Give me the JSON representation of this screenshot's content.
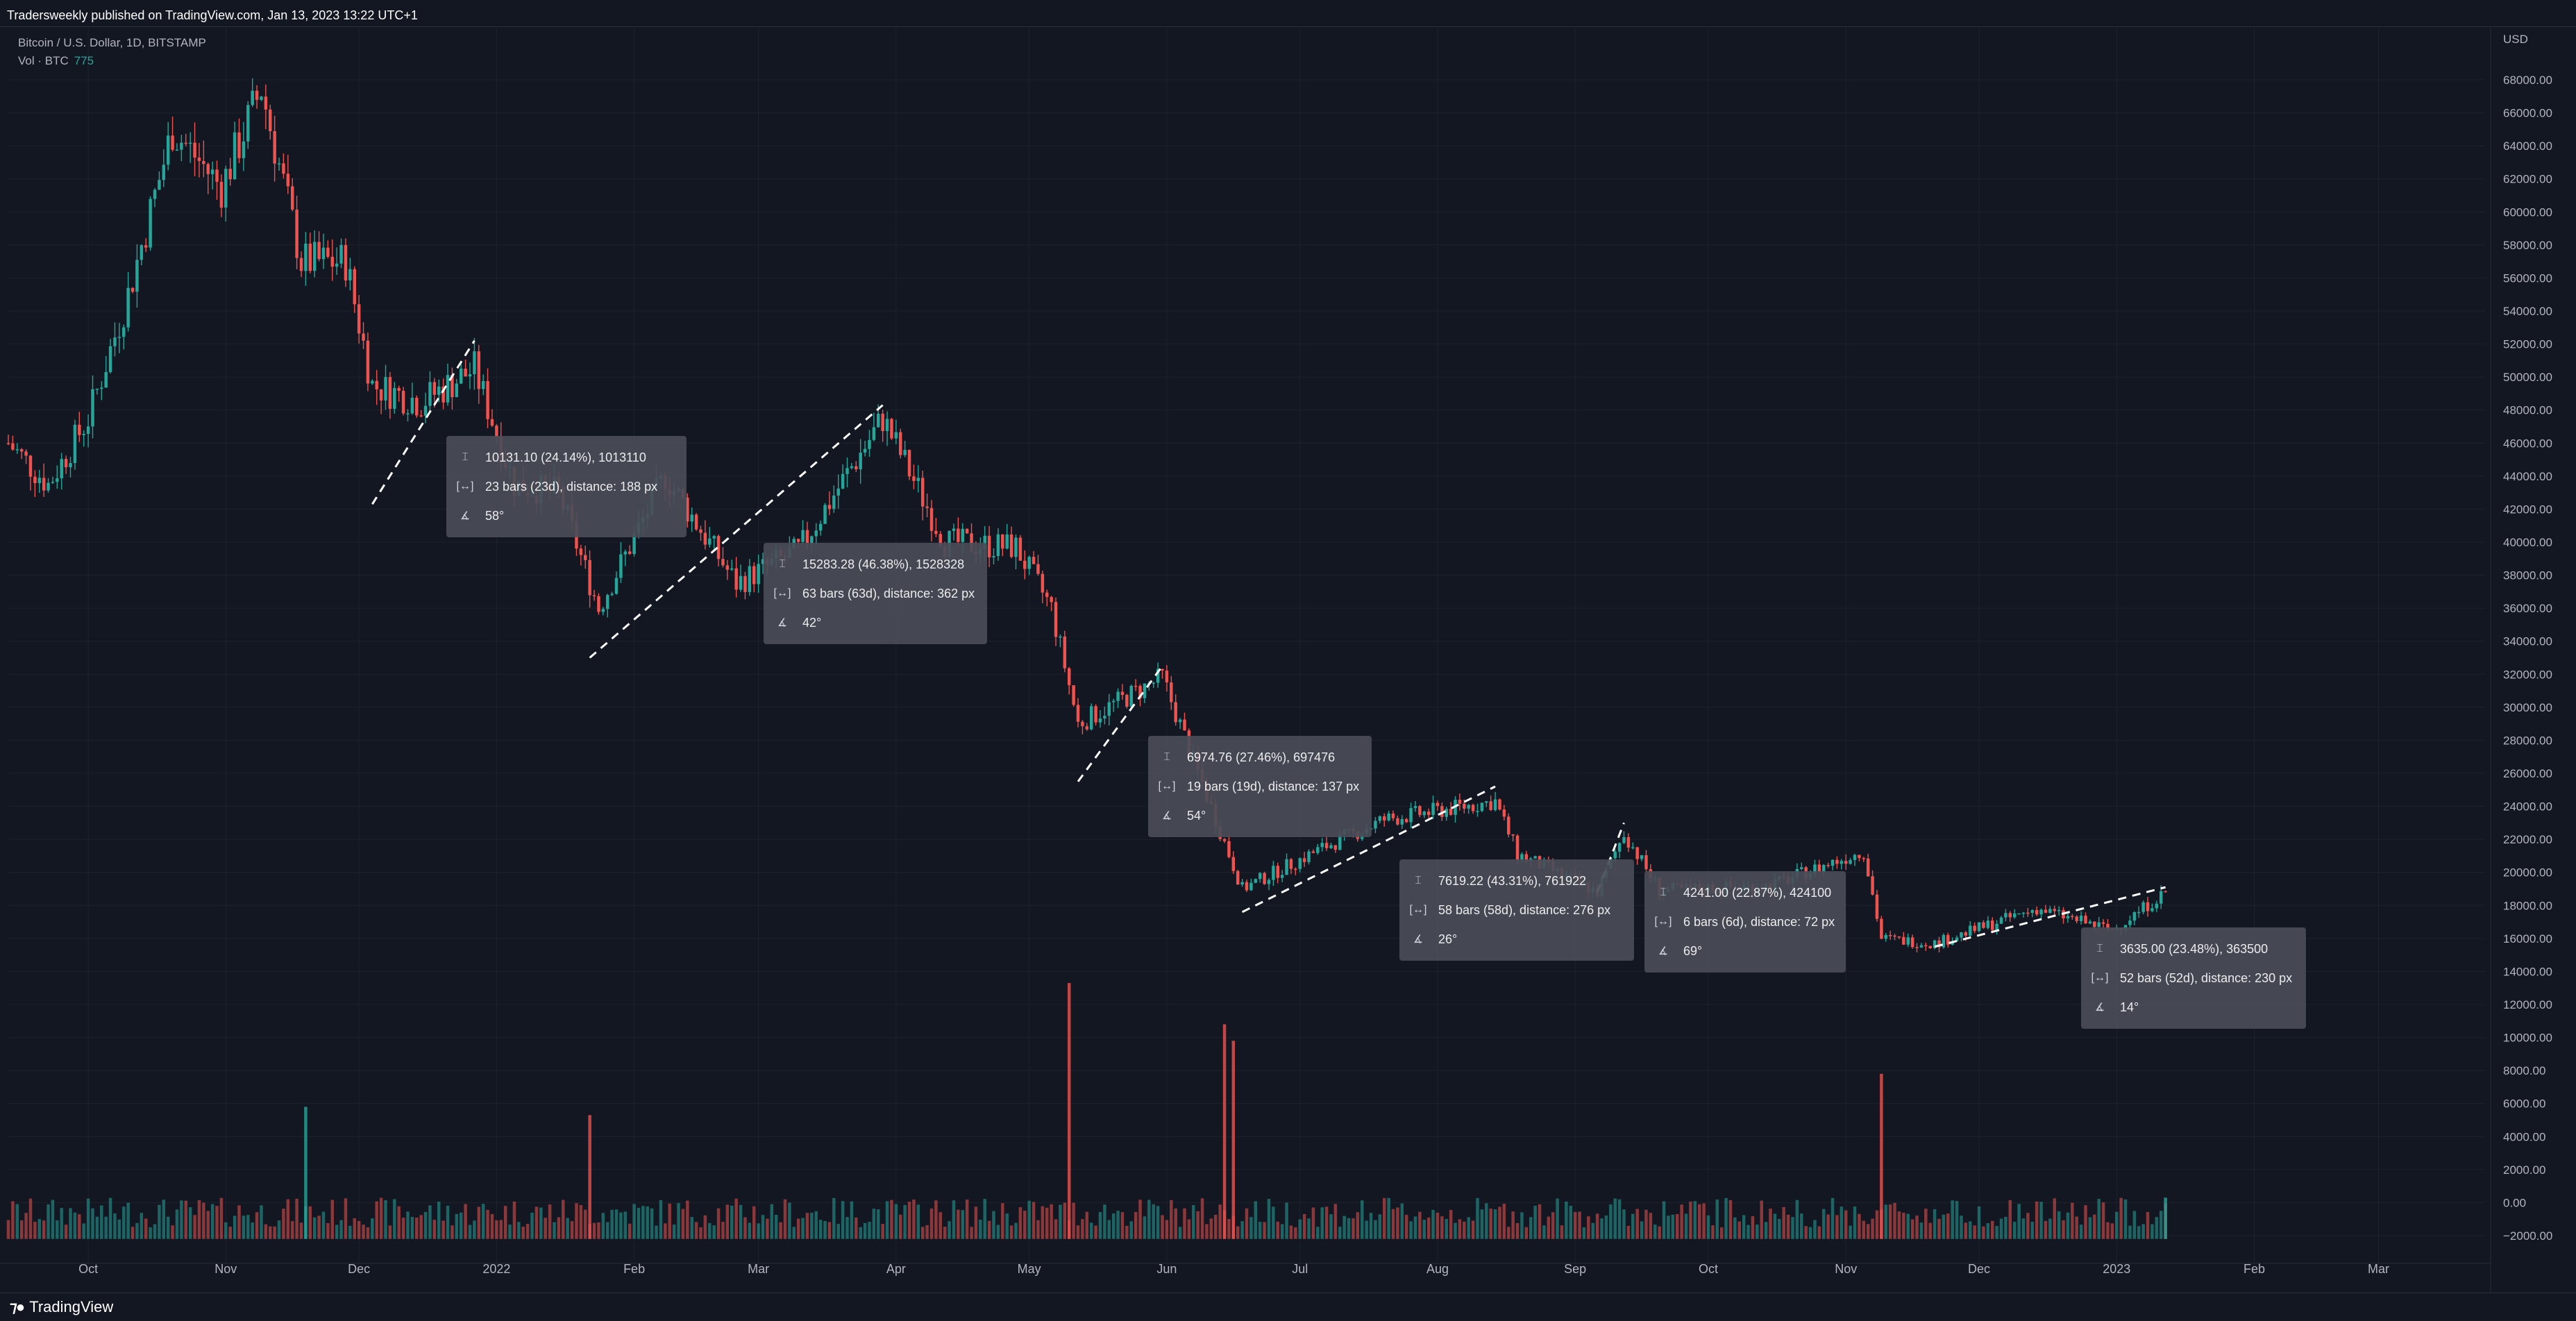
{
  "header": {
    "publisher": "Tradersweekly published on TradingView.com, Jan 13, 2023 13:22 UTC+1",
    "symbol_line": "Bitcoin / U.S. Dollar, 1D, BITSTAMP",
    "volume_label": "Vol · BTC",
    "volume_value": "775"
  },
  "footer": {
    "brand": "TradingView"
  },
  "colors": {
    "up": "#26a69a",
    "down": "#ef5350",
    "background": "#131722",
    "grid": "#1e222d",
    "text": "#b2b5be"
  },
  "measurements": [
    {
      "line1": "10131.10 (24.14%), 1013110",
      "line2": "23 bars (23d), distance: 188 px",
      "line3": "58°"
    },
    {
      "line1": "15283.28 (46.38%), 1528328",
      "line2": "63 bars (63d), distance: 362 px",
      "line3": "42°"
    },
    {
      "line1": "6974.76 (27.46%), 697476",
      "line2": "19 bars (19d), distance: 137 px",
      "line3": "54°"
    },
    {
      "line1": "7619.22 (43.31%), 761922",
      "line2": "58 bars (58d), distance: 276 px",
      "line3": "26°"
    },
    {
      "line1": "4241.00 (22.87%), 424100",
      "line2": "6 bars (6d), distance: 72 px",
      "line3": "69°"
    },
    {
      "line1": "3635.00 (23.48%), 363500",
      "line2": "52 bars (52d), distance: 230 px",
      "line3": "14°"
    }
  ],
  "chart_data": {
    "type": "candlestick",
    "symbol": "Bitcoin / U.S. Dollar",
    "timeframe": "1D",
    "exchange": "BITSTAMP",
    "currency": "USD",
    "x_ticks": [
      "Oct",
      "Nov",
      "Dec",
      "2022",
      "Feb",
      "Mar",
      "Apr",
      "May",
      "Jun",
      "Jul",
      "Aug",
      "Sep",
      "Oct",
      "Nov",
      "Dec",
      "2023",
      "Feb",
      "Mar"
    ],
    "price_ticks": [
      "68000.00",
      "66000.00",
      "64000.00",
      "62000.00",
      "60000.00",
      "58000.00",
      "56000.00",
      "54000.00",
      "52000.00",
      "50000.00",
      "48000.00",
      "46000.00",
      "44000.00",
      "42000.00",
      "40000.00",
      "38000.00",
      "36000.00",
      "34000.00",
      "32000.00",
      "30000.00",
      "28000.00",
      "26000.00",
      "24000.00",
      "22000.00",
      "20000.00",
      "18000.00",
      "16000.00",
      "14000.00",
      "12000.00",
      "10000.00",
      "8000.00",
      "6000.00",
      "4000.00",
      "2000.00",
      "0.00",
      "−2000.00"
    ],
    "price_axis": {
      "min": -2000,
      "max": 68000,
      "step": 2000
    },
    "approx_close_path": [
      {
        "date": "2021-09-13",
        "close": 46000
      },
      {
        "date": "2021-09-22",
        "close": 43500
      },
      {
        "date": "2021-10-01",
        "close": 47500
      },
      {
        "date": "2021-10-10",
        "close": 55000
      },
      {
        "date": "2021-10-20",
        "close": 65000
      },
      {
        "date": "2021-10-31",
        "close": 61500
      },
      {
        "date": "2021-11-09",
        "close": 67500
      },
      {
        "date": "2021-11-18",
        "close": 57000
      },
      {
        "date": "2021-11-28",
        "close": 57000
      },
      {
        "date": "2021-12-04",
        "close": 49500
      },
      {
        "date": "2021-12-15",
        "close": 48500
      },
      {
        "date": "2021-12-27",
        "close": 50500
      },
      {
        "date": "2022-01-05",
        "close": 43500
      },
      {
        "date": "2022-01-15",
        "close": 43000
      },
      {
        "date": "2022-01-24",
        "close": 36000
      },
      {
        "date": "2022-02-08",
        "close": 44000
      },
      {
        "date": "2022-02-24",
        "close": 37500
      },
      {
        "date": "2022-03-10",
        "close": 39500
      },
      {
        "date": "2022-03-29",
        "close": 47500
      },
      {
        "date": "2022-04-12",
        "close": 40000
      },
      {
        "date": "2022-04-28",
        "close": 39700
      },
      {
        "date": "2022-05-06",
        "close": 36000
      },
      {
        "date": "2022-05-12",
        "close": 29000
      },
      {
        "date": "2022-05-31",
        "close": 31800
      },
      {
        "date": "2022-06-13",
        "close": 22500
      },
      {
        "date": "2022-06-18",
        "close": 19000
      },
      {
        "date": "2022-07-07",
        "close": 21600
      },
      {
        "date": "2022-07-20",
        "close": 23200
      },
      {
        "date": "2022-08-14",
        "close": 24300
      },
      {
        "date": "2022-08-19",
        "close": 21100
      },
      {
        "date": "2022-09-06",
        "close": 18800
      },
      {
        "date": "2022-09-12",
        "close": 22400
      },
      {
        "date": "2022-09-20",
        "close": 18900
      },
      {
        "date": "2022-10-15",
        "close": 19200
      },
      {
        "date": "2022-11-05",
        "close": 21300
      },
      {
        "date": "2022-11-09",
        "close": 16000
      },
      {
        "date": "2022-11-21",
        "close": 15700
      },
      {
        "date": "2022-12-14",
        "close": 17800
      },
      {
        "date": "2022-12-31",
        "close": 16500
      },
      {
        "date": "2023-01-12",
        "close": 18800
      }
    ],
    "volume": [
      {
        "date": "2021-11-19",
        "value": 8000
      },
      {
        "date": "2022-01-22",
        "value": 7500
      },
      {
        "date": "2022-05-10",
        "value": 15500
      },
      {
        "date": "2022-06-14",
        "value": 13000
      },
      {
        "date": "2022-06-16",
        "value": 12000
      },
      {
        "date": "2022-11-09",
        "value": 10000
      },
      {
        "date": "2023-01-12",
        "value": 2500
      }
    ]
  }
}
